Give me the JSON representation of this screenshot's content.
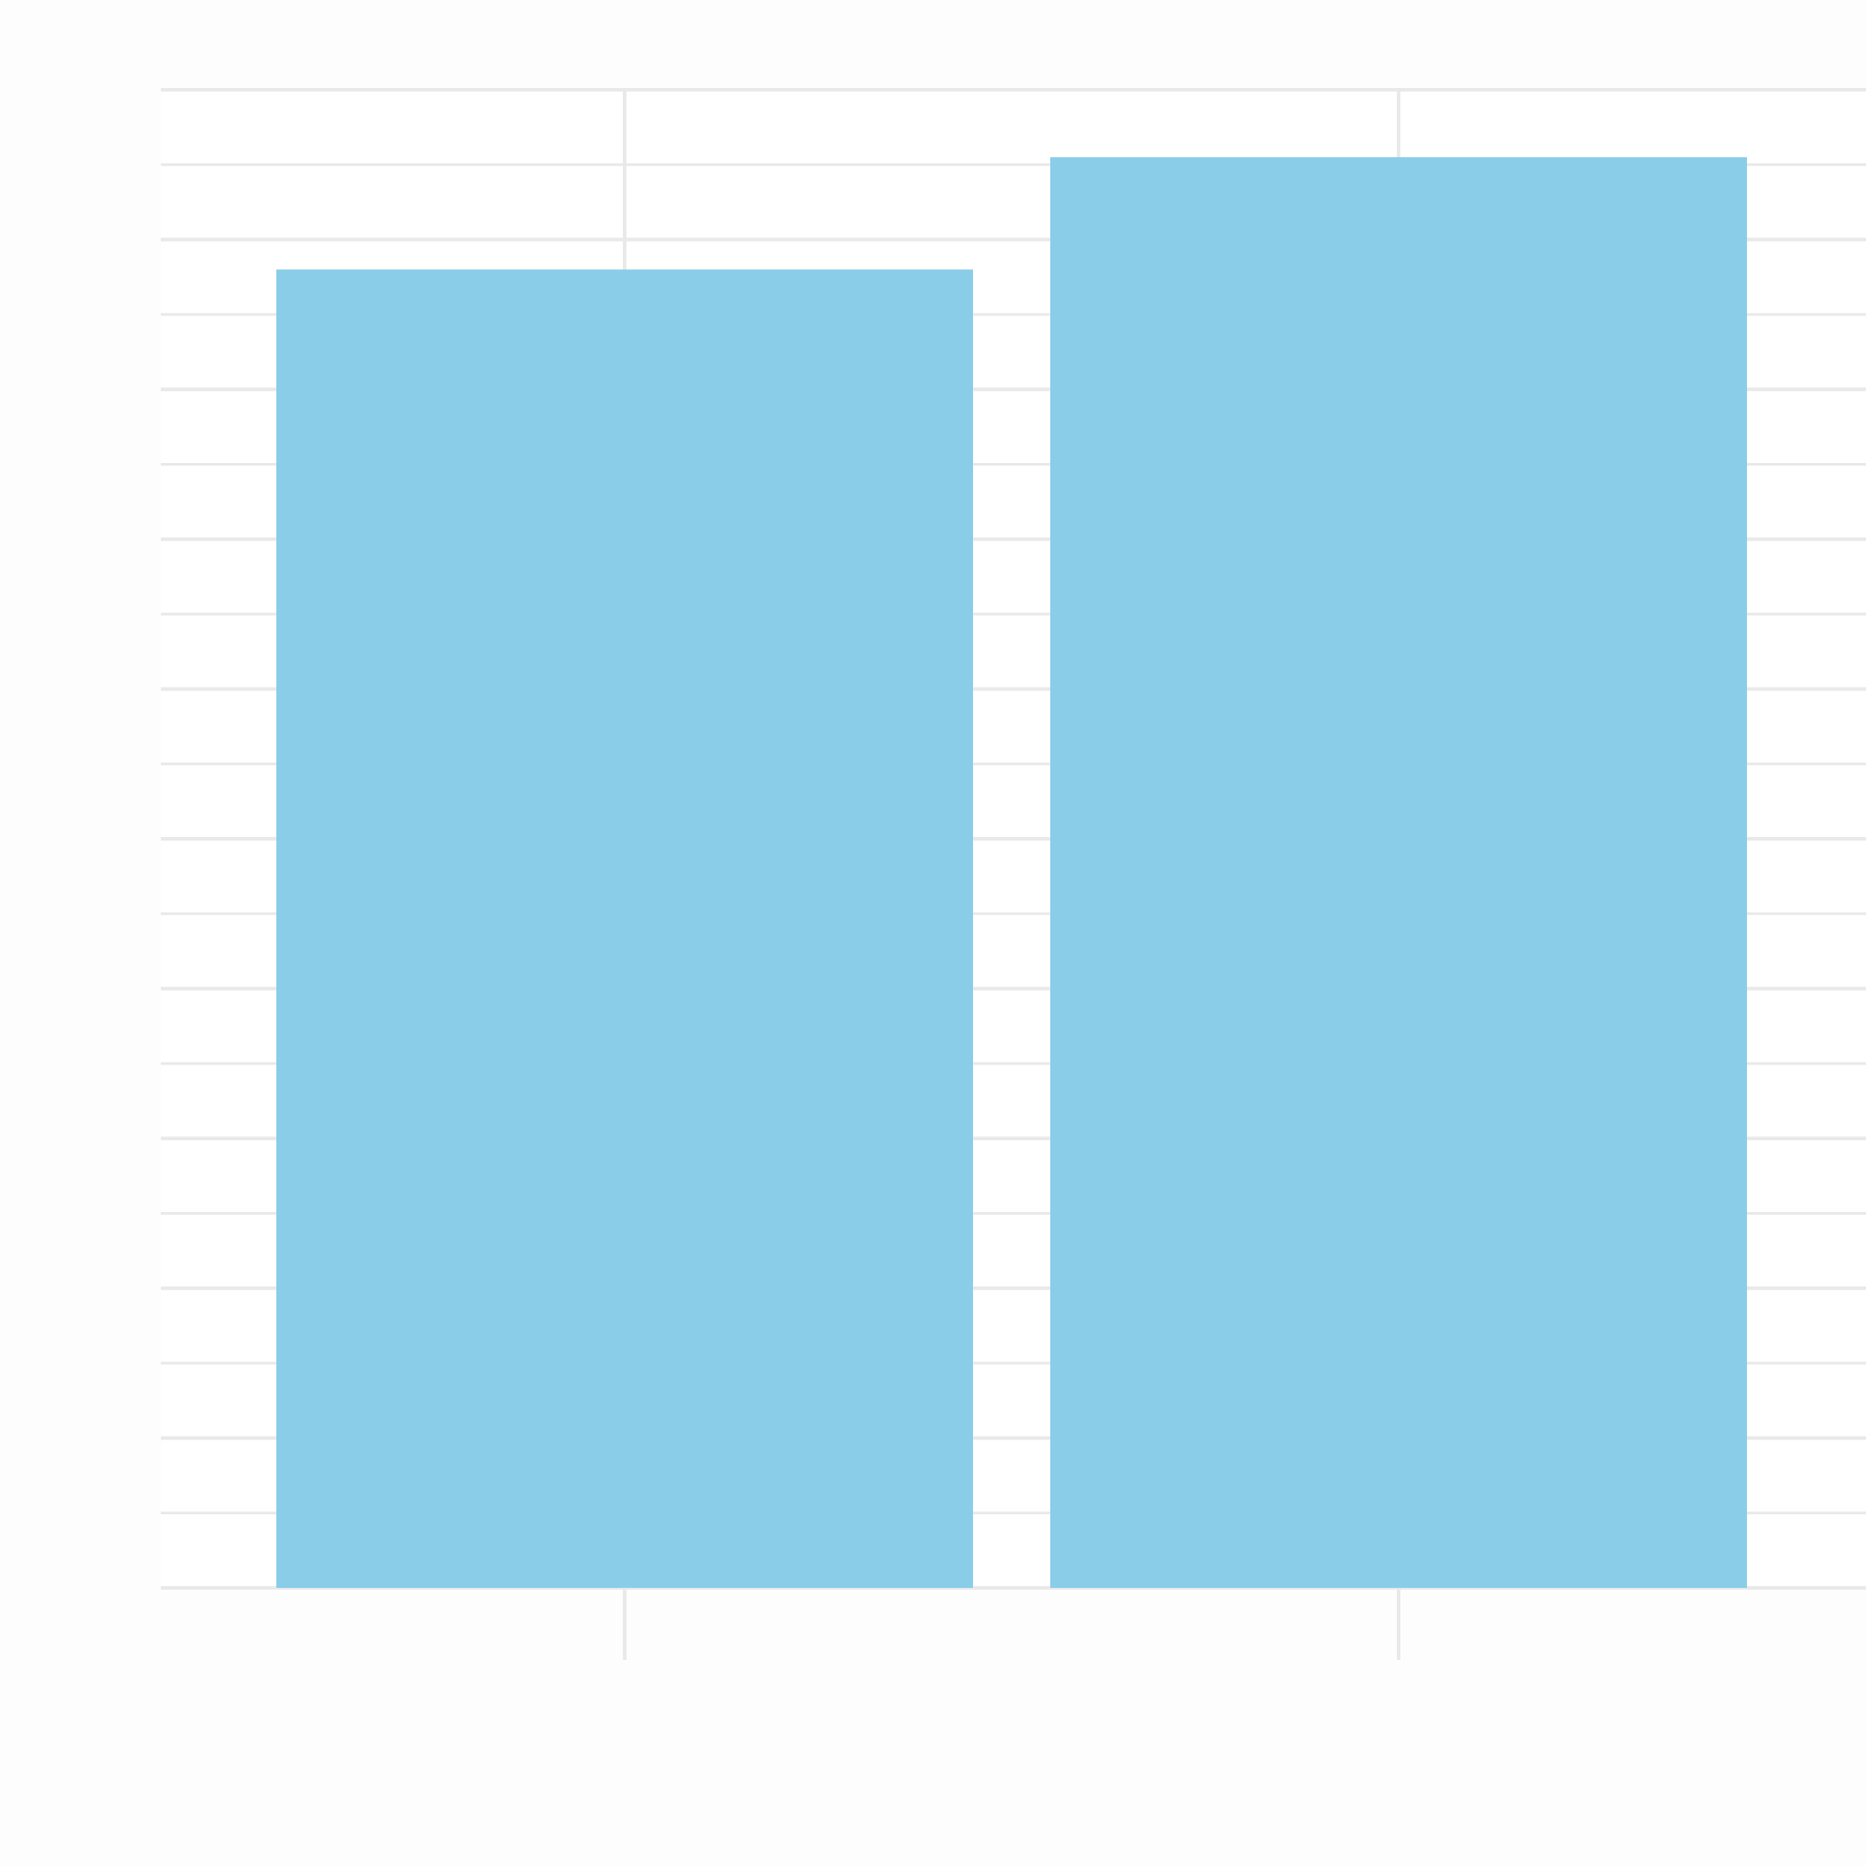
{
  "chart_data": {
    "type": "bar",
    "title": "",
    "xlabel": "",
    "ylabel": "",
    "categories": [
      "",
      ""
    ],
    "values": [
      8.8,
      9.55
    ],
    "ylim": [
      0,
      10
    ],
    "yticks": [
      0,
      1,
      2,
      3,
      4,
      5,
      6,
      7,
      8,
      9,
      10
    ],
    "grid": true,
    "legend": "none",
    "colors": {
      "bar": "#89cde9",
      "grid": "#e9e9e9",
      "background": "#fdfdfd",
      "panel": "#ffffff"
    }
  }
}
